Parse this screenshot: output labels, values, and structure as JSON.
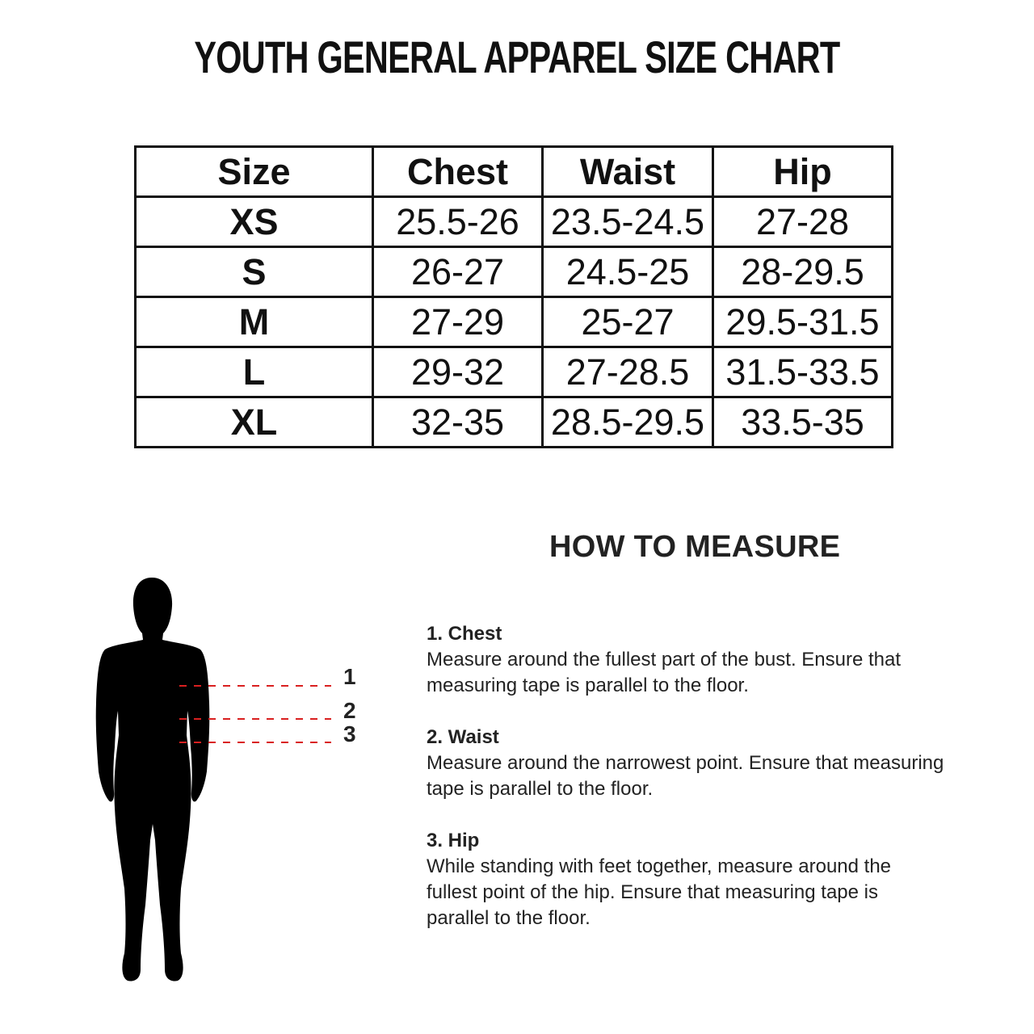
{
  "title": "YOUTH GENERAL APPAREL SIZE CHART",
  "table": {
    "headers": [
      "Size",
      "Chest",
      "Waist",
      "Hip"
    ],
    "rows": [
      [
        "XS",
        "25.5-26",
        "23.5-24.5",
        "27-28"
      ],
      [
        "S",
        "26-27",
        "24.5-25",
        "28-29.5"
      ],
      [
        "M",
        "27-29",
        "25-27",
        "29.5-31.5"
      ],
      [
        "L",
        "29-32",
        "27-28.5",
        "31.5-33.5"
      ],
      [
        "XL",
        "32-35",
        "28.5-29.5",
        "33.5-35"
      ]
    ]
  },
  "how_to_measure": {
    "heading": "HOW TO MEASURE",
    "markers": [
      "1",
      "2",
      "3"
    ],
    "marker_color": "#d92020",
    "steps": [
      {
        "title": "1. Chest",
        "lines": [
          "Measure around the fullest part of the bust. Ensure that",
          "measuring tape is parallel to the floor."
        ]
      },
      {
        "title": "2. Waist",
        "lines": [
          "Measure around the narrowest point. Ensure that measuring",
          "tape is parallel to the floor."
        ]
      },
      {
        "title": "3. Hip",
        "lines": [
          "While standing with feet together, measure around the",
          "fullest point of the hip. Ensure that measuring tape is",
          "parallel to the floor."
        ]
      }
    ]
  }
}
